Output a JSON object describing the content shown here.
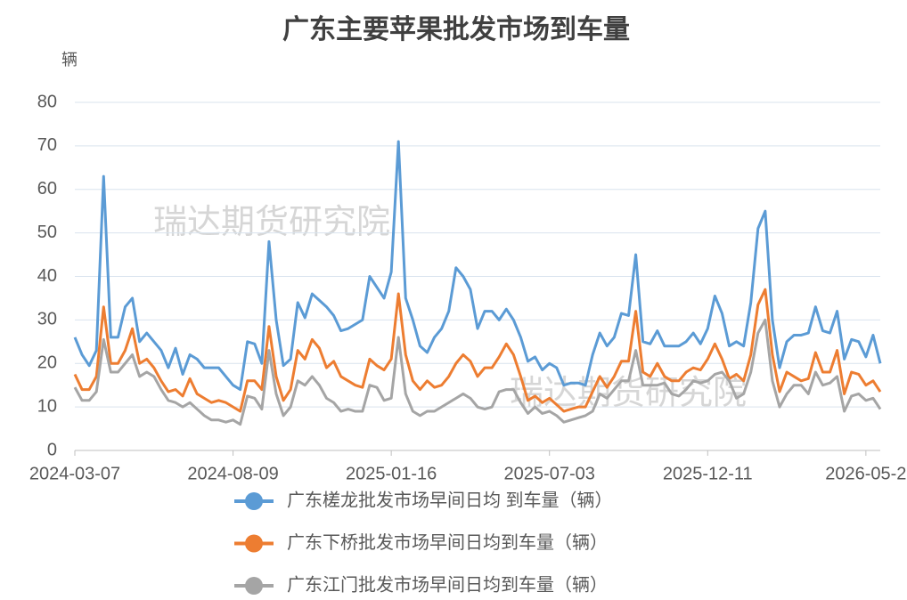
{
  "chart_data": {
    "type": "line",
    "title": "广东主要苹果批发市场到车量",
    "y_unit": "辆",
    "watermarks": [
      "瑞达期货研究院",
      "瑞达期货研究院"
    ],
    "categories": [
      "2024-03-07",
      null,
      null,
      null,
      null,
      null,
      null,
      null,
      null,
      null,
      null,
      null,
      null,
      null,
      null,
      null,
      null,
      null,
      null,
      null,
      null,
      null,
      "2024-08-09",
      null,
      null,
      null,
      null,
      null,
      null,
      null,
      null,
      null,
      null,
      null,
      null,
      null,
      null,
      null,
      null,
      null,
      null,
      null,
      null,
      null,
      "2025-01-16",
      null,
      null,
      null,
      null,
      null,
      null,
      null,
      null,
      null,
      null,
      null,
      null,
      null,
      null,
      null,
      null,
      null,
      null,
      null,
      null,
      null,
      "2025-07-03",
      null,
      null,
      null,
      null,
      null,
      null,
      null,
      null,
      null,
      null,
      null,
      null,
      null,
      null,
      null,
      null,
      null,
      null,
      null,
      null,
      null,
      "2025-12-11",
      null,
      null,
      null,
      null,
      null,
      null,
      null,
      null,
      null,
      null,
      null,
      null,
      null,
      null,
      null,
      null,
      null,
      null,
      null,
      null,
      null,
      "2026-05-2",
      null,
      null
    ],
    "ylim": [
      0,
      80
    ],
    "yticks": [
      0,
      10,
      20,
      30,
      40,
      50,
      60,
      70,
      80
    ],
    "grid": true,
    "series": [
      {
        "name": "广东槎龙批发市场早间日均 到车量（辆）",
        "color": "#5b9bd5",
        "values": [
          26,
          22,
          19.5,
          23,
          63,
          26,
          26,
          33,
          35,
          25,
          27,
          25,
          23,
          19,
          23.5,
          17.5,
          22,
          21,
          19,
          19,
          19,
          17,
          15,
          14,
          25,
          24.5,
          20,
          48,
          30,
          19.5,
          21,
          34,
          30.5,
          36,
          34.5,
          33,
          31,
          27.5,
          28,
          29,
          30,
          40,
          37.5,
          35,
          41,
          71,
          35,
          30,
          24,
          22.5,
          26,
          28,
          32,
          42,
          40,
          37,
          28,
          32,
          32,
          30,
          32.5,
          30,
          26,
          20.5,
          21.5,
          18.5,
          20,
          19,
          15,
          15.5,
          15.5,
          15,
          22,
          27,
          24,
          26,
          31.5,
          31,
          45,
          25,
          24.5,
          27.5,
          24,
          24,
          24,
          25,
          27,
          24.5,
          28,
          35.5,
          31.5,
          24,
          25,
          24,
          34,
          51,
          55,
          30,
          19,
          25,
          26.5,
          26.5,
          27,
          33,
          27.5,
          27,
          32,
          21,
          25.5,
          25,
          21.5,
          26.5,
          20
        ]
      },
      {
        "name": "广东下桥批发市场早间日均到车量（辆）",
        "color": "#ed7d31",
        "values": [
          17.5,
          14,
          14,
          17,
          33,
          20,
          20,
          23,
          28,
          20,
          21,
          19,
          16,
          13.5,
          14,
          12.5,
          16.5,
          13,
          12,
          11,
          11.5,
          11,
          10,
          9,
          16,
          16,
          14,
          28.5,
          17,
          11.5,
          14,
          23,
          21,
          25.5,
          23.5,
          19,
          20.5,
          17,
          16,
          15,
          14.5,
          21,
          19.5,
          18.5,
          21,
          36,
          22,
          16,
          14,
          16,
          14.5,
          15,
          17,
          20,
          22,
          20.5,
          17,
          19,
          19,
          21.5,
          24.5,
          22,
          17,
          11.5,
          12.5,
          11,
          12,
          10.5,
          9,
          9.5,
          10,
          10,
          13.5,
          17,
          14.5,
          17,
          20.5,
          20.5,
          32,
          18,
          17,
          20,
          17,
          16,
          16,
          18,
          19,
          18.5,
          21,
          24.5,
          21,
          16.5,
          17.5,
          16,
          22,
          33.5,
          37,
          22,
          13.5,
          18,
          17,
          16,
          16.5,
          22.5,
          18,
          18,
          23,
          13,
          18,
          17.5,
          15,
          16,
          13.5
        ]
      },
      {
        "name": "广东江门批发市场早间日均到车量（辆）",
        "color": "#a5a5a5",
        "values": [
          14.5,
          11.5,
          11.5,
          13.5,
          25.5,
          18,
          18,
          20,
          22,
          17,
          18,
          17,
          14,
          11.5,
          11,
          10,
          11,
          9.5,
          8,
          7,
          7,
          6.5,
          7,
          6,
          12.5,
          12,
          9.5,
          23,
          13,
          8,
          10,
          16,
          15,
          17,
          15,
          12,
          11,
          9,
          9.5,
          9,
          9,
          15,
          14.5,
          11.5,
          12,
          26,
          13,
          9,
          8,
          9,
          9,
          10,
          11,
          12,
          13,
          12,
          10,
          9.5,
          10,
          13.5,
          14,
          14,
          11,
          8.5,
          10,
          8.5,
          9,
          8,
          6.5,
          7,
          7.5,
          8,
          9,
          13,
          12,
          14,
          16,
          16,
          23,
          15,
          15,
          15,
          15.5,
          13,
          12.5,
          14,
          16,
          15.5,
          16,
          17.5,
          18,
          16,
          12,
          13,
          18,
          27,
          30,
          16,
          10,
          13,
          15,
          15,
          13,
          18,
          15,
          15.5,
          17,
          9,
          12.5,
          13,
          11.5,
          12,
          9.5
        ]
      }
    ]
  }
}
